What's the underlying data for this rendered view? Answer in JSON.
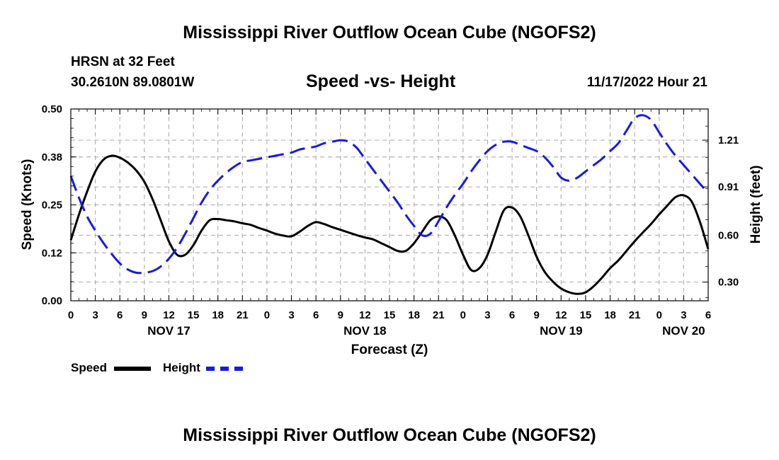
{
  "title": "Mississippi River Outflow Ocean Cube (NGOFS2)",
  "station": {
    "name": "HRSN at 32 Feet",
    "coords": "30.2610N  89.0801W"
  },
  "subtitle": "Speed -vs- Height",
  "timestamp": "11/17/2022 Hour 21",
  "footer_title": "Mississippi River Outflow Ocean Cube (NGOFS2)",
  "legend": {
    "speed_label": "Speed",
    "height_label": "Height"
  },
  "colors": {
    "speed": "#000000",
    "height": "#1a1adc",
    "grid": "#b4b4b4"
  },
  "chart_data": {
    "type": "line",
    "title": "Speed -vs- Height",
    "xlabel": "Forecast (Z)",
    "ylabel_left": "Speed (Knots)",
    "ylabel_right": "Height (feet)",
    "x_unit": "hours from NOV 17 00Z",
    "xlim": [
      0,
      78
    ],
    "x_ticks": [
      0,
      3,
      6,
      9,
      12,
      15,
      18,
      21,
      24,
      27,
      30,
      33,
      36,
      39,
      42,
      45,
      48,
      51,
      54,
      57,
      60,
      63,
      66,
      69,
      72,
      75,
      78
    ],
    "x_tick_labels": [
      "0",
      "3",
      "6",
      "9",
      "12",
      "15",
      "18",
      "21",
      "0",
      "3",
      "6",
      "9",
      "12",
      "15",
      "18",
      "21",
      "0",
      "3",
      "6",
      "9",
      "12",
      "15",
      "18",
      "21",
      "0",
      "3",
      "6"
    ],
    "date_labels": [
      {
        "x": 12,
        "label": "NOV 17"
      },
      {
        "x": 36,
        "label": "NOV 18"
      },
      {
        "x": 60,
        "label": "NOV 19"
      },
      {
        "x": 75,
        "label": "NOV 20"
      }
    ],
    "ylim_left": [
      0,
      0.5
    ],
    "y_ticks_left": [
      0,
      0.125,
      0.25,
      0.375,
      0.5
    ],
    "y_tick_labels_left": [
      "0.00",
      "0.12",
      "0.25",
      "0.38",
      "0.50"
    ],
    "ylim_right": [
      0.18,
      1.41
    ],
    "y_ticks_right": [
      0.3,
      0.6,
      0.91,
      1.21
    ],
    "y_tick_labels_right": [
      "0.30",
      "0.60",
      "0.91",
      "1.21"
    ],
    "grid": true,
    "series": [
      {
        "name": "Speed",
        "axis": "left",
        "style": "solid",
        "x": [
          0,
          1,
          2,
          3,
          4,
          5,
          6,
          7,
          8,
          9,
          10,
          11,
          12,
          13,
          14,
          15,
          16,
          17,
          18,
          19,
          20,
          21,
          22,
          23,
          24,
          25,
          26,
          27,
          28,
          29,
          30,
          31,
          32,
          33,
          34,
          35,
          36,
          37,
          38,
          39,
          40,
          41,
          42,
          43,
          44,
          45,
          46,
          47,
          48,
          49,
          50,
          51,
          52,
          53,
          54,
          55,
          56,
          57,
          58,
          59,
          60,
          61,
          62,
          63,
          64,
          65,
          66,
          67,
          68,
          69,
          70,
          71,
          72,
          73,
          74,
          75,
          76,
          77,
          78
        ],
        "values": [
          0.158,
          0.225,
          0.285,
          0.337,
          0.368,
          0.378,
          0.373,
          0.36,
          0.34,
          0.31,
          0.265,
          0.21,
          0.155,
          0.12,
          0.12,
          0.145,
          0.183,
          0.21,
          0.213,
          0.21,
          0.207,
          0.202,
          0.198,
          0.19,
          0.183,
          0.175,
          0.17,
          0.168,
          0.18,
          0.195,
          0.205,
          0.2,
          0.192,
          0.185,
          0.178,
          0.171,
          0.165,
          0.16,
          0.15,
          0.14,
          0.13,
          0.13,
          0.15,
          0.18,
          0.21,
          0.22,
          0.21,
          0.17,
          0.12,
          0.08,
          0.085,
          0.12,
          0.18,
          0.236,
          0.243,
          0.22,
          0.17,
          0.115,
          0.075,
          0.05,
          0.032,
          0.022,
          0.018,
          0.022,
          0.038,
          0.06,
          0.085,
          0.105,
          0.13,
          0.155,
          0.178,
          0.2,
          0.225,
          0.248,
          0.27,
          0.275,
          0.258,
          0.205,
          0.135
        ]
      },
      {
        "name": "Height",
        "axis": "right",
        "style": "dashed",
        "x": [
          0,
          1,
          2,
          3,
          4,
          5,
          6,
          7,
          8,
          9,
          10,
          11,
          12,
          13,
          14,
          15,
          16,
          17,
          18,
          19,
          20,
          21,
          22,
          23,
          24,
          25,
          26,
          27,
          28,
          29,
          30,
          31,
          32,
          33,
          34,
          35,
          36,
          37,
          38,
          39,
          40,
          41,
          42,
          43,
          44,
          45,
          46,
          47,
          48,
          49,
          50,
          51,
          52,
          53,
          54,
          55,
          56,
          57,
          58,
          59,
          60,
          61,
          62,
          63,
          64,
          65,
          66,
          67,
          68,
          69,
          70,
          71,
          72,
          73,
          74,
          75,
          76,
          77,
          78
        ],
        "values": [
          0.98,
          0.84,
          0.72,
          0.63,
          0.55,
          0.48,
          0.42,
          0.38,
          0.36,
          0.36,
          0.37,
          0.4,
          0.45,
          0.52,
          0.61,
          0.71,
          0.81,
          0.89,
          0.95,
          1.0,
          1.04,
          1.07,
          1.08,
          1.09,
          1.1,
          1.11,
          1.12,
          1.13,
          1.15,
          1.16,
          1.17,
          1.19,
          1.2,
          1.21,
          1.2,
          1.16,
          1.09,
          1.02,
          0.95,
          0.88,
          0.81,
          0.73,
          0.66,
          0.6,
          0.61,
          0.69,
          0.78,
          0.86,
          0.93,
          1.01,
          1.08,
          1.14,
          1.18,
          1.2,
          1.2,
          1.18,
          1.16,
          1.14,
          1.1,
          1.04,
          0.97,
          0.95,
          0.97,
          1.01,
          1.05,
          1.09,
          1.14,
          1.19,
          1.27,
          1.35,
          1.37,
          1.34,
          1.26,
          1.18,
          1.11,
          1.05,
          0.99,
          0.93,
          0.87
        ]
      }
    ]
  }
}
